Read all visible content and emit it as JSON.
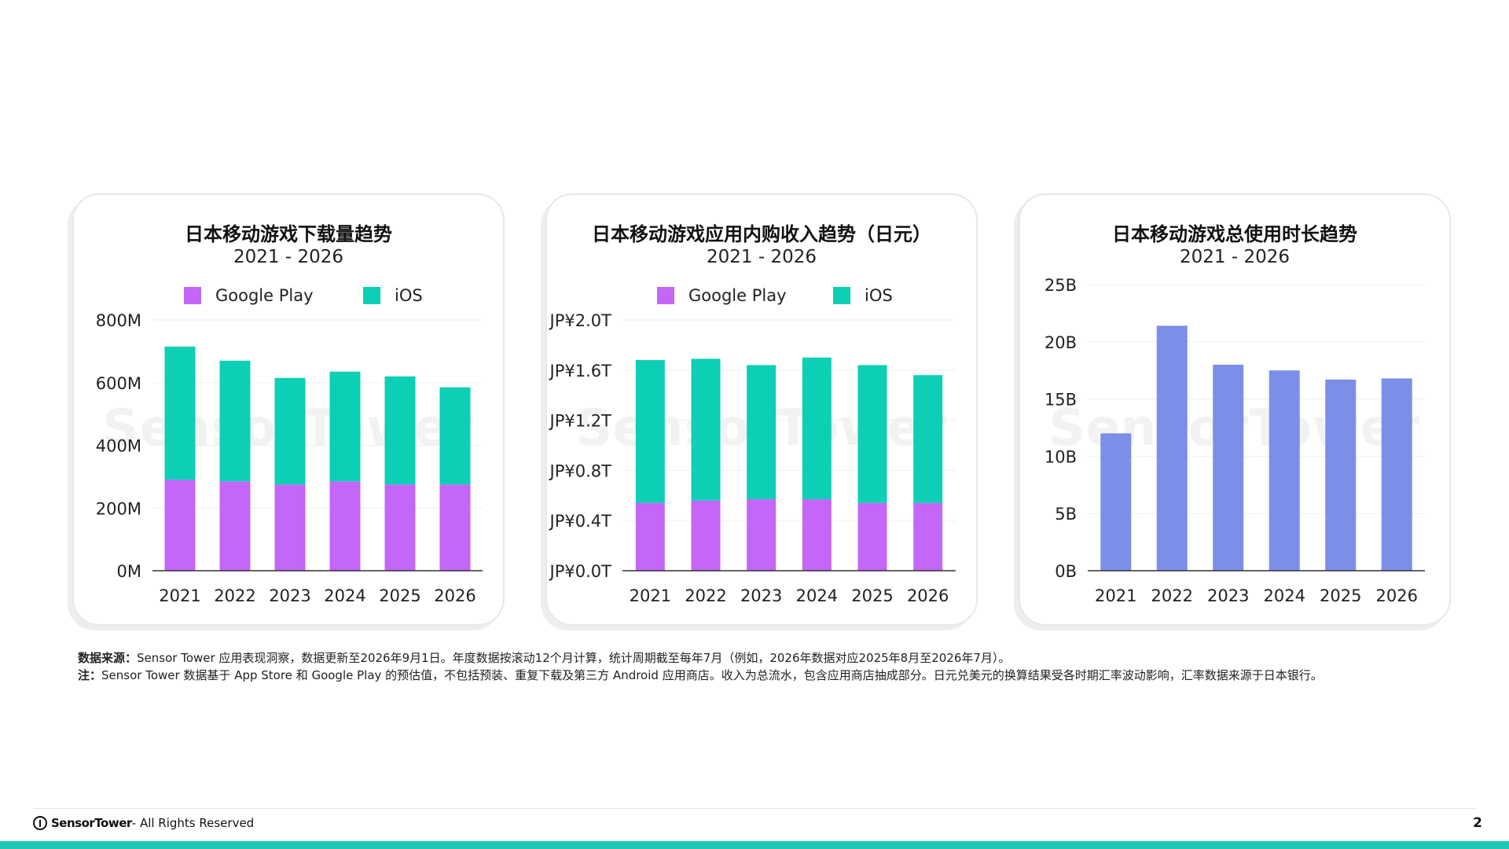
{
  "colors": {
    "google_play": "#c466f7",
    "ios": "#0ccfb6",
    "usage": "#7b8ee8",
    "accent": "#1ec9b7"
  },
  "watermark": "SensorTower",
  "chart_data": [
    {
      "type": "bar",
      "stacked": true,
      "title": "日本移动游戏下载量趋势",
      "subtitle": "2021 - 2026",
      "categories": [
        "2021",
        "2022",
        "2023",
        "2024",
        "2025",
        "2026"
      ],
      "series": [
        {
          "name": "Google Play",
          "values": [
            290,
            285,
            275,
            285,
            275,
            275
          ]
        },
        {
          "name": "iOS",
          "values": [
            425,
            385,
            340,
            350,
            345,
            310
          ]
        }
      ],
      "y_ticks": [
        "0M",
        "200M",
        "400M",
        "600M",
        "800M"
      ],
      "ylim": [
        0,
        800
      ],
      "grid": true,
      "legend": "top"
    },
    {
      "type": "bar",
      "stacked": true,
      "title": "日本移动游戏应用内购收入趋势（日元）",
      "subtitle": "2021 - 2026",
      "categories": [
        "2021",
        "2022",
        "2023",
        "2024",
        "2025",
        "2026"
      ],
      "series": [
        {
          "name": "Google Play",
          "values": [
            0.54,
            0.56,
            0.57,
            0.57,
            0.54,
            0.54
          ]
        },
        {
          "name": "iOS",
          "values": [
            1.14,
            1.13,
            1.07,
            1.13,
            1.1,
            1.02
          ]
        }
      ],
      "y_ticks": [
        "JP¥0.0T",
        "JP¥0.4T",
        "JP¥0.8T",
        "JP¥1.2T",
        "JP¥1.6T",
        "JP¥2.0T"
      ],
      "ylim": [
        0,
        2.0
      ],
      "grid": true,
      "legend": "top"
    },
    {
      "type": "bar",
      "title": "日本移动游戏总使用时长趋势",
      "subtitle": "2021 - 2026",
      "categories": [
        "2021",
        "2022",
        "2023",
        "2024",
        "2025",
        "2026"
      ],
      "series": [
        {
          "name": "",
          "values": [
            12.0,
            21.4,
            18.0,
            17.5,
            16.7,
            16.8
          ]
        }
      ],
      "y_ticks": [
        "0B",
        "5B",
        "10B",
        "15B",
        "20B",
        "25B"
      ],
      "ylim": [
        0,
        25
      ],
      "grid": true,
      "legend": "none"
    }
  ],
  "notes": {
    "source_label": "数据来源：",
    "source_text": "Sensor Tower 应用表现洞察，数据更新至2026年9月1日。年度数据按滚动12个月计算，统计周期截至每年7月（例如，2026年数据对应2025年8月至2026年7月）。",
    "note_label": "注：",
    "note_text": "Sensor Tower 数据基于 App Store 和 Google Play 的预估值，不包括预装、重复下载及第三方 Android 应用商店。收入为总流水，包含应用商店抽成部分。日元兑美元的换算结果受各时期汇率波动影响，汇率数据来源于日本银行。"
  },
  "footer": {
    "brand": "SensorTower",
    "rights": " - All Rights Reserved",
    "page_number": "2"
  }
}
